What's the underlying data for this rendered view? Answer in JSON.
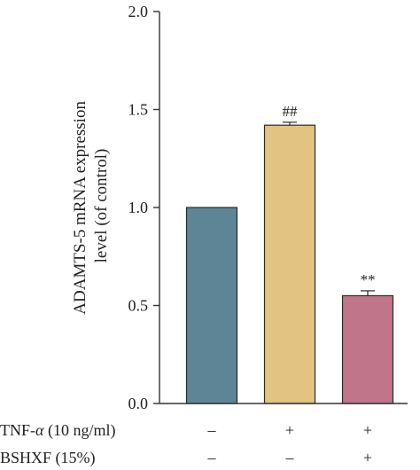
{
  "chart_data": {
    "type": "bar",
    "ylabel": "ADAMTS-5 mRNA expression level (of control)",
    "ylabel_lines": [
      "ADAMTS-5 mRNA expression",
      "level (of control)"
    ],
    "ylim": [
      0,
      2.0
    ],
    "yticks": [
      "0.0",
      "0.5",
      "1.0",
      "1.5",
      "2.0"
    ],
    "ytick_values": [
      0,
      0.5,
      1.0,
      1.5,
      2.0
    ],
    "grid": false,
    "bars": [
      {
        "value": 1.0,
        "error": 0.0,
        "color": "#5e8595",
        "annotation": ""
      },
      {
        "value": 1.42,
        "error": 0.015,
        "color": "#e3c381",
        "annotation": "##"
      },
      {
        "value": 0.55,
        "error": 0.025,
        "color": "#c0758b",
        "annotation": "**"
      }
    ],
    "condition_rows": [
      {
        "label": "TNF-α (10 ng/ml)",
        "label_prefix": "TNF-",
        "label_symbol": "α",
        "label_suffix": " (10 ng/ml)",
        "signs": [
          "–",
          "+",
          "+"
        ]
      },
      {
        "label": "BSHXF (15%)",
        "label_prefix": "BSHXF (15%)",
        "label_symbol": "",
        "label_suffix": "",
        "signs": [
          "–",
          "–",
          "+"
        ]
      }
    ]
  }
}
